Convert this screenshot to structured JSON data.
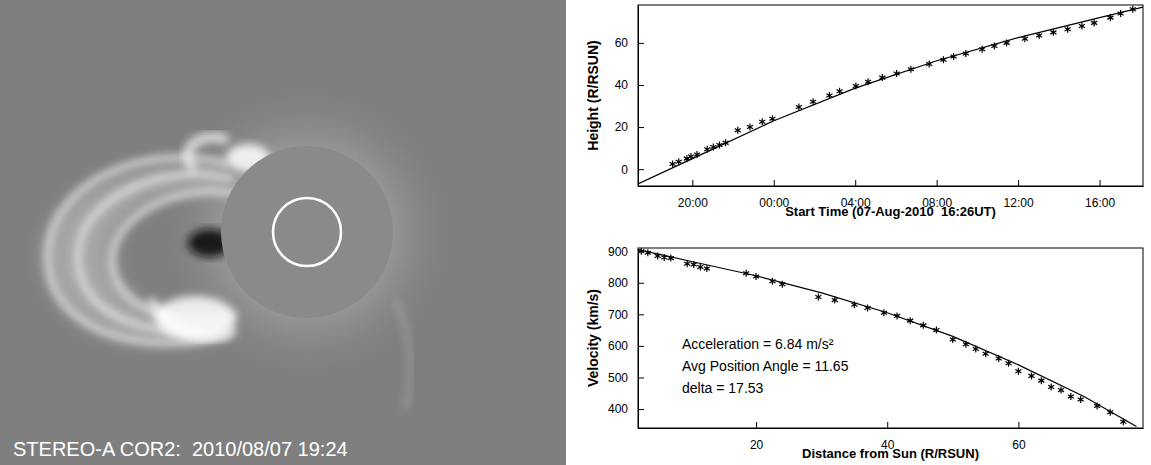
{
  "image": {
    "caption": "STEREO-A COR2:  2010/08/07 19:24"
  },
  "chart_data": [
    {
      "type": "scatter",
      "x_label": "Start Time (07-Aug-2010  16:26UT)",
      "y_label": "Height (R/RSUN)",
      "xlim": [
        0.9,
        25.7
      ],
      "ylim": [
        -8,
        78
      ],
      "xticks": [
        {
          "value": 3.5667,
          "label": "20:00"
        },
        {
          "value": 7.5667,
          "label": "00:00"
        },
        {
          "value": 11.5667,
          "label": "04:00"
        },
        {
          "value": 15.5667,
          "label": "08:00"
        },
        {
          "value": 19.5667,
          "label": "12:00"
        },
        {
          "value": 23.5667,
          "label": "16:00"
        }
      ],
      "yticks": [
        0,
        20,
        40,
        60
      ],
      "grid": false,
      "series": [
        {
          "type": "scatter",
          "marker": "asterisk",
          "color": "#000000",
          "x": [
            2.6,
            2.9,
            3.3,
            3.5,
            3.8,
            4.3,
            4.6,
            4.9,
            5.2,
            5.8,
            6.4,
            7.0,
            7.5,
            8.8,
            9.5,
            10.3,
            10.8,
            11.6,
            12.2,
            12.9,
            13.6,
            14.3,
            15.2,
            15.9,
            16.4,
            17.0,
            17.8,
            18.4,
            19.0,
            19.9,
            20.6,
            21.3,
            22.0,
            22.7,
            23.3,
            24.1,
            24.6,
            25.2
          ],
          "values": [
            2.5,
            3.5,
            5,
            6,
            7,
            9.5,
            10.5,
            11.5,
            12.5,
            18.5,
            20,
            22.5,
            24,
            29.5,
            32,
            35,
            37,
            39.5,
            41.5,
            43.5,
            45.5,
            47.5,
            50,
            52,
            53.5,
            55,
            57,
            58.5,
            60,
            62,
            63.5,
            65,
            66.5,
            68,
            69.5,
            72,
            74,
            76
          ]
        },
        {
          "type": "line",
          "line_style": "solid",
          "color": "#000000",
          "x": [
            0.9,
            3.57,
            7.57,
            11.57,
            15.57,
            19.57,
            23.57,
            25.7
          ],
          "values": [
            -7,
            5,
            23,
            38.5,
            51.5,
            62.5,
            72,
            77
          ]
        }
      ]
    },
    {
      "type": "scatter",
      "x_label": "Distance from Sun (R/RSUN)",
      "y_label": "Velocity (km/s)",
      "annotations": [
        "Acceleration = 6.84 m/s²",
        "Avg Position Angle = 11.65",
        "delta = 17.53"
      ],
      "xlim": [
        2,
        79
      ],
      "ylim": [
        340,
        910
      ],
      "xticks": [
        20,
        40,
        60
      ],
      "yticks": [
        400,
        500,
        600,
        700,
        800,
        900
      ],
      "grid": false,
      "series": [
        {
          "type": "scatter",
          "marker": "asterisk",
          "color": "#000000",
          "x": [
            2.5,
            3.5,
            5,
            6,
            7,
            9.5,
            10.5,
            11.5,
            12.5,
            18.5,
            20,
            22.5,
            24,
            29.5,
            32,
            35,
            37,
            39.5,
            41.5,
            43.5,
            45.5,
            47.5,
            50,
            52,
            53.5,
            55,
            57,
            58.5,
            60,
            62,
            63.5,
            65,
            66.5,
            68,
            69.5,
            72,
            74,
            76
          ],
          "values": [
            900,
            895,
            885,
            880,
            878,
            860,
            858,
            850,
            845,
            830,
            820,
            805,
            795,
            755,
            745,
            730,
            720,
            705,
            695,
            680,
            665,
            650,
            620,
            605,
            590,
            575,
            560,
            545,
            520,
            505,
            490,
            470,
            460,
            440,
            430,
            410,
            390,
            360
          ]
        },
        {
          "type": "line",
          "line_style": "solid",
          "color": "#000000",
          "x": [
            2,
            10,
            20,
            30,
            40,
            50,
            60,
            70,
            78
          ],
          "values": [
            905,
            868,
            822,
            768,
            705,
            630,
            540,
            440,
            345
          ]
        }
      ]
    }
  ]
}
